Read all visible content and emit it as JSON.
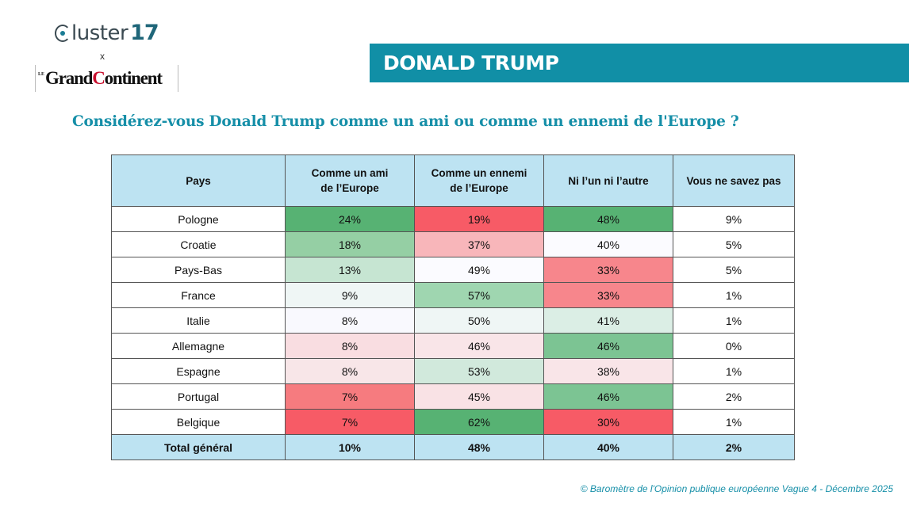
{
  "logos": {
    "cluster_text": "luster",
    "cluster_number": "17",
    "separator": "x",
    "grand_continent_prefix": "LE",
    "grand_continent_part1": "Grand",
    "grand_continent_accent": "C",
    "grand_continent_part2": "ontinent"
  },
  "banner": {
    "title": "DONALD TRUMP"
  },
  "question": "Considérez-vous Donald Trump comme un ami ou comme un ennemi de l'Europe ?",
  "footer": "© Baromètre de l'Opinion publique européenne Vague 4 - Décembre 2025",
  "colors": {
    "header_bg": "#bde3f2",
    "banner_bg": "#118fa6",
    "title_color": "#168fa8",
    "scale_green": "#57b273",
    "scale_white": "#fbfbff",
    "scale_red": "#f75b66"
  },
  "chart_data": {
    "type": "table",
    "title": "Considérez-vous Donald Trump comme un ami ou comme un ennemi de l'Europe ?",
    "columns": [
      "Pays",
      "Comme un ami\nde l’Europe",
      "Comme un ennemi\nde l’Europe",
      "Ni l’un ni l’autre",
      "Vous ne savez pas"
    ],
    "column_lines": [
      [
        "Pays"
      ],
      [
        "Comme un ami",
        "de l’Europe"
      ],
      [
        "Comme un ennemi",
        "de l’Europe"
      ],
      [
        "Ni l’un ni l’autre"
      ],
      [
        "Vous ne savez pas"
      ]
    ],
    "rows": [
      {
        "country": "Pologne",
        "values": [
          "24%",
          "19%",
          "48%",
          "9%"
        ]
      },
      {
        "country": "Croatie",
        "values": [
          "18%",
          "37%",
          "40%",
          "5%"
        ]
      },
      {
        "country": "Pays-Bas",
        "values": [
          "13%",
          "49%",
          "33%",
          "5%"
        ]
      },
      {
        "country": "France",
        "values": [
          "9%",
          "57%",
          "33%",
          "1%"
        ]
      },
      {
        "country": "Italie",
        "values": [
          "8%",
          "50%",
          "41%",
          "1%"
        ]
      },
      {
        "country": "Allemagne",
        "values": [
          "8%",
          "46%",
          "46%",
          "0%"
        ]
      },
      {
        "country": "Espagne",
        "values": [
          "8%",
          "53%",
          "38%",
          "1%"
        ]
      },
      {
        "country": "Portugal",
        "values": [
          "7%",
          "45%",
          "46%",
          "2%"
        ]
      },
      {
        "country": "Belgique",
        "values": [
          "7%",
          "62%",
          "30%",
          "1%"
        ]
      }
    ],
    "total": {
      "label": "Total général",
      "values": [
        "10%",
        "48%",
        "40%",
        "2%"
      ]
    },
    "cell_colors": [
      [
        "#57b273",
        "#f75b66",
        "#57b273",
        "#ffffff"
      ],
      [
        "#95cfa4",
        "#f8b6ba",
        "#fbfbff",
        "#ffffff"
      ],
      [
        "#c6e5d2",
        "#fbfbff",
        "#f7868c",
        "#ffffff"
      ],
      [
        "#eff6f5",
        "#9fd6b0",
        "#f7868c",
        "#ffffff"
      ],
      [
        "#f9f9fe",
        "#eff6f5",
        "#dbeee5",
        "#ffffff"
      ],
      [
        "#f9dde1",
        "#f9e5e8",
        "#7cc493",
        "#ffffff"
      ],
      [
        "#f8e6e8",
        "#d1e9dc",
        "#f9e5e8",
        "#ffffff"
      ],
      [
        "#f67b7f",
        "#f9e2e5",
        "#7cc493",
        "#ffffff"
      ],
      [
        "#f75b66",
        "#57b273",
        "#f75b66",
        "#ffffff"
      ]
    ]
  }
}
